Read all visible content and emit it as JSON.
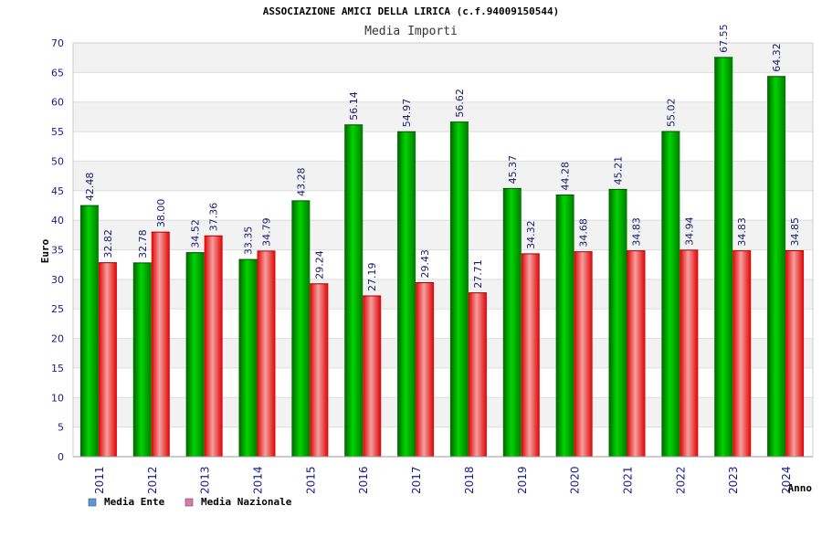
{
  "chart_data": {
    "type": "bar",
    "title": "ASSOCIAZIONE AMICI DELLA LIRICA (c.f.94009150544)",
    "subtitle": "Media Importi",
    "xlabel": "Anno",
    "ylabel": "Euro",
    "ylim": [
      0,
      70
    ],
    "yticks": [
      0,
      5,
      10,
      15,
      20,
      25,
      30,
      35,
      40,
      45,
      50,
      55,
      60,
      65,
      70
    ],
    "grid": true,
    "legend_position": "bottom-left",
    "categories": [
      "2011",
      "2012",
      "2013",
      "2014",
      "2015",
      "2016",
      "2017",
      "2018",
      "2019",
      "2020",
      "2021",
      "2022",
      "2023",
      "2024"
    ],
    "series": [
      {
        "name": "Media Ente",
        "color": "#00b000",
        "legend_color": "#5599dd",
        "values": [
          42.48,
          32.78,
          34.52,
          33.35,
          43.28,
          56.14,
          54.97,
          56.62,
          45.37,
          44.28,
          45.21,
          55.02,
          67.55,
          64.32
        ],
        "labels": [
          "42.48",
          "32.78",
          "34.52",
          "33.35",
          "43.28",
          "56.14",
          "54.97",
          "56.62",
          "45.37",
          "44.28",
          "45.21",
          "55.02",
          "67.55",
          "64.32"
        ]
      },
      {
        "name": "Media Nazionale",
        "color": "#ee2222",
        "legend_color": "#dd77aa",
        "values": [
          32.82,
          38.0,
          37.36,
          34.79,
          29.24,
          27.19,
          29.43,
          27.71,
          34.32,
          34.68,
          34.83,
          34.94,
          34.83,
          34.85
        ],
        "labels": [
          "32.82",
          "38.00",
          "37.36",
          "34.79",
          "29.24",
          "27.19",
          "29.43",
          "27.71",
          "34.32",
          "34.68",
          "34.83",
          "34.94",
          "34.83",
          "34.85"
        ]
      }
    ]
  }
}
